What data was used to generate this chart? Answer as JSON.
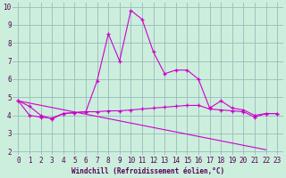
{
  "xlabel": "Windchill (Refroidissement éolien,°C)",
  "background_color": "#cceedd",
  "line_color": "#cc00cc",
  "grid_color": "#99bbbb",
  "xlim": [
    -0.5,
    23.5
  ],
  "ylim": [
    1.8,
    10.2
  ],
  "yticks": [
    2,
    3,
    4,
    5,
    6,
    7,
    8,
    9,
    10
  ],
  "xticks": [
    0,
    1,
    2,
    3,
    4,
    5,
    6,
    7,
    8,
    9,
    10,
    11,
    12,
    13,
    14,
    15,
    16,
    17,
    18,
    19,
    20,
    21,
    22,
    23
  ],
  "line1_x": [
    0,
    1,
    2,
    3,
    4,
    5,
    6,
    7,
    8,
    9,
    10,
    11,
    12,
    13,
    14,
    15,
    16,
    17,
    18,
    19,
    20,
    21,
    22,
    23
  ],
  "line1_y": [
    4.8,
    4.5,
    4.0,
    3.8,
    4.1,
    4.15,
    4.2,
    5.9,
    8.5,
    7.0,
    9.8,
    9.3,
    7.5,
    6.3,
    6.5,
    6.5,
    6.0,
    4.4,
    4.8,
    4.4,
    4.3,
    4.0,
    4.1,
    4.1
  ],
  "line2_x": [
    0,
    1,
    2,
    3,
    4,
    5,
    6,
    7,
    8,
    9,
    10,
    11,
    12,
    13,
    14,
    15,
    16,
    17,
    18,
    19,
    20,
    21,
    22,
    23
  ],
  "line2_y": [
    4.8,
    4.0,
    3.9,
    3.85,
    4.1,
    4.15,
    4.2,
    4.2,
    4.25,
    4.25,
    4.3,
    4.35,
    4.4,
    4.45,
    4.5,
    4.55,
    4.55,
    4.35,
    4.3,
    4.25,
    4.2,
    3.9,
    4.1,
    4.1
  ],
  "line3_x": [
    0,
    22
  ],
  "line3_y": [
    4.8,
    2.1
  ]
}
